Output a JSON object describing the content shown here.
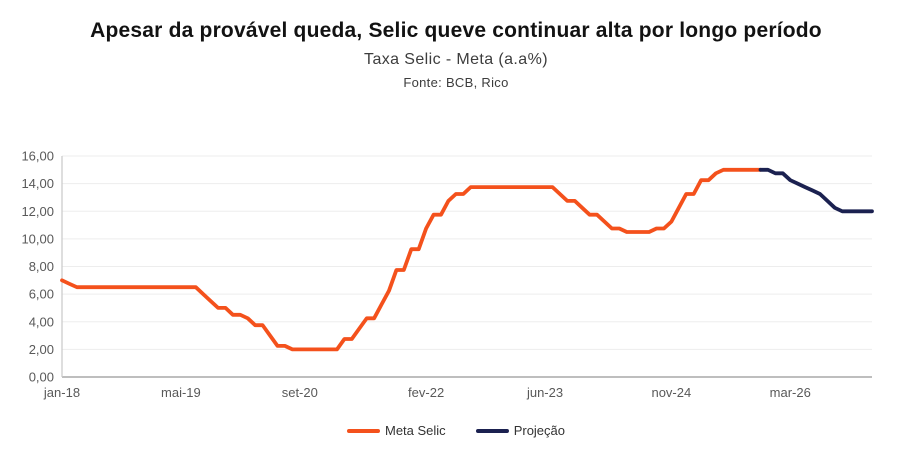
{
  "header": {
    "title": "Apesar da provável queda, Selic queve continuar alta por longo período",
    "subtitle": "Taxa Selic - Meta (a.a%)",
    "source": "Fonte: BCB, Rico"
  },
  "chart_data": {
    "type": "line",
    "x_start": "jan-18",
    "x_freq": "monthly",
    "n_points": 110,
    "ylim": [
      0,
      16
    ],
    "grid": "horizontal",
    "legend_position": "bottom",
    "colors": {
      "axis": "#A8A8A8",
      "gridline": "#EDEDED",
      "tick_text": "#595959"
    },
    "y_ticks": [
      {
        "value": 0,
        "label": "0,00"
      },
      {
        "value": 2,
        "label": "2,00"
      },
      {
        "value": 4,
        "label": "4,00"
      },
      {
        "value": 6,
        "label": "6,00"
      },
      {
        "value": 8,
        "label": "8,00"
      },
      {
        "value": 10,
        "label": "10,00"
      },
      {
        "value": 12,
        "label": "12,00"
      },
      {
        "value": 14,
        "label": "14,00"
      },
      {
        "value": 16,
        "label": "16,00"
      }
    ],
    "x_ticks": [
      {
        "index": 0,
        "label": "jan-18"
      },
      {
        "index": 16,
        "label": "mai-19"
      },
      {
        "index": 32,
        "label": "set-20"
      },
      {
        "index": 49,
        "label": "fev-22"
      },
      {
        "index": 65,
        "label": "jun-23"
      },
      {
        "index": 82,
        "label": "nov-24"
      },
      {
        "index": 98,
        "label": "mar-26"
      }
    ],
    "series": [
      {
        "name": "Meta Selic",
        "color": "#F4511C",
        "start_index": 0,
        "start_month": "jan-18",
        "end_month": "nov-25",
        "values": [
          7.0,
          6.75,
          6.5,
          6.5,
          6.5,
          6.5,
          6.5,
          6.5,
          6.5,
          6.5,
          6.5,
          6.5,
          6.5,
          6.5,
          6.5,
          6.5,
          6.5,
          6.5,
          6.5,
          6.0,
          5.5,
          5.0,
          5.0,
          4.5,
          4.5,
          4.25,
          3.75,
          3.75,
          3.0,
          2.25,
          2.25,
          2.0,
          2.0,
          2.0,
          2.0,
          2.0,
          2.0,
          2.0,
          2.75,
          2.75,
          3.5,
          4.25,
          4.25,
          5.25,
          6.25,
          7.75,
          7.75,
          9.25,
          9.25,
          10.75,
          11.75,
          11.75,
          12.75,
          13.25,
          13.25,
          13.75,
          13.75,
          13.75,
          13.75,
          13.75,
          13.75,
          13.75,
          13.75,
          13.75,
          13.75,
          13.75,
          13.75,
          13.25,
          12.75,
          12.75,
          12.25,
          11.75,
          11.75,
          11.25,
          10.75,
          10.75,
          10.5,
          10.5,
          10.5,
          10.5,
          10.75,
          10.75,
          11.25,
          12.25,
          13.25,
          13.25,
          14.25,
          14.25,
          14.75,
          15.0,
          15.0,
          15.0,
          15.0,
          15.0,
          15.0
        ]
      },
      {
        "name": "Projeção",
        "color": "#1B2150",
        "start_index": 94,
        "start_month": "nov-25",
        "end_month": "fev-27",
        "values": [
          15.0,
          15.0,
          14.75,
          14.75,
          14.25,
          14.0,
          13.75,
          13.5,
          13.25,
          12.75,
          12.25,
          12.0,
          12.0,
          12.0,
          12.0,
          12.0
        ]
      }
    ]
  }
}
